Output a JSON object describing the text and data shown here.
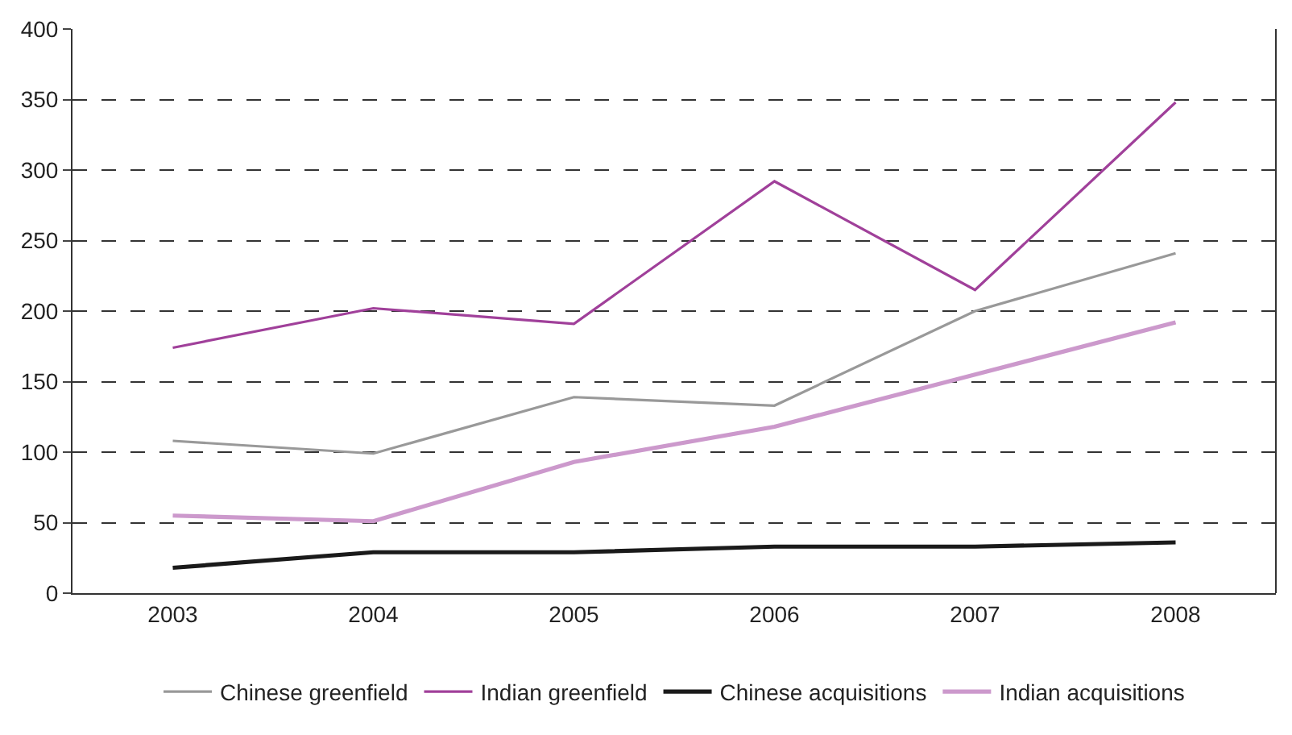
{
  "chart_data": {
    "type": "line",
    "categories": [
      "2003",
      "2004",
      "2005",
      "2006",
      "2007",
      "2008"
    ],
    "series": [
      {
        "name": "Chinese greenfield",
        "color": "#999999",
        "values": [
          108,
          99,
          139,
          133,
          200,
          241
        ]
      },
      {
        "name": "Indian greenfield",
        "color": "#a0409a",
        "values": [
          174,
          202,
          191,
          292,
          215,
          348
        ]
      },
      {
        "name": "Chinese acquisitions",
        "color": "#1a1a1a",
        "values": [
          18,
          29,
          29,
          33,
          33,
          36
        ]
      },
      {
        "name": "Indian acquisitions",
        "color": "#cc99cc",
        "values": [
          55,
          51,
          93,
          118,
          155,
          192
        ]
      }
    ],
    "ylim": [
      0,
      400
    ],
    "yticks": [
      0,
      50,
      100,
      150,
      200,
      250,
      300,
      350,
      400
    ],
    "grid": "y",
    "legend": "bottom",
    "marker": "none",
    "line_style": "solid"
  }
}
